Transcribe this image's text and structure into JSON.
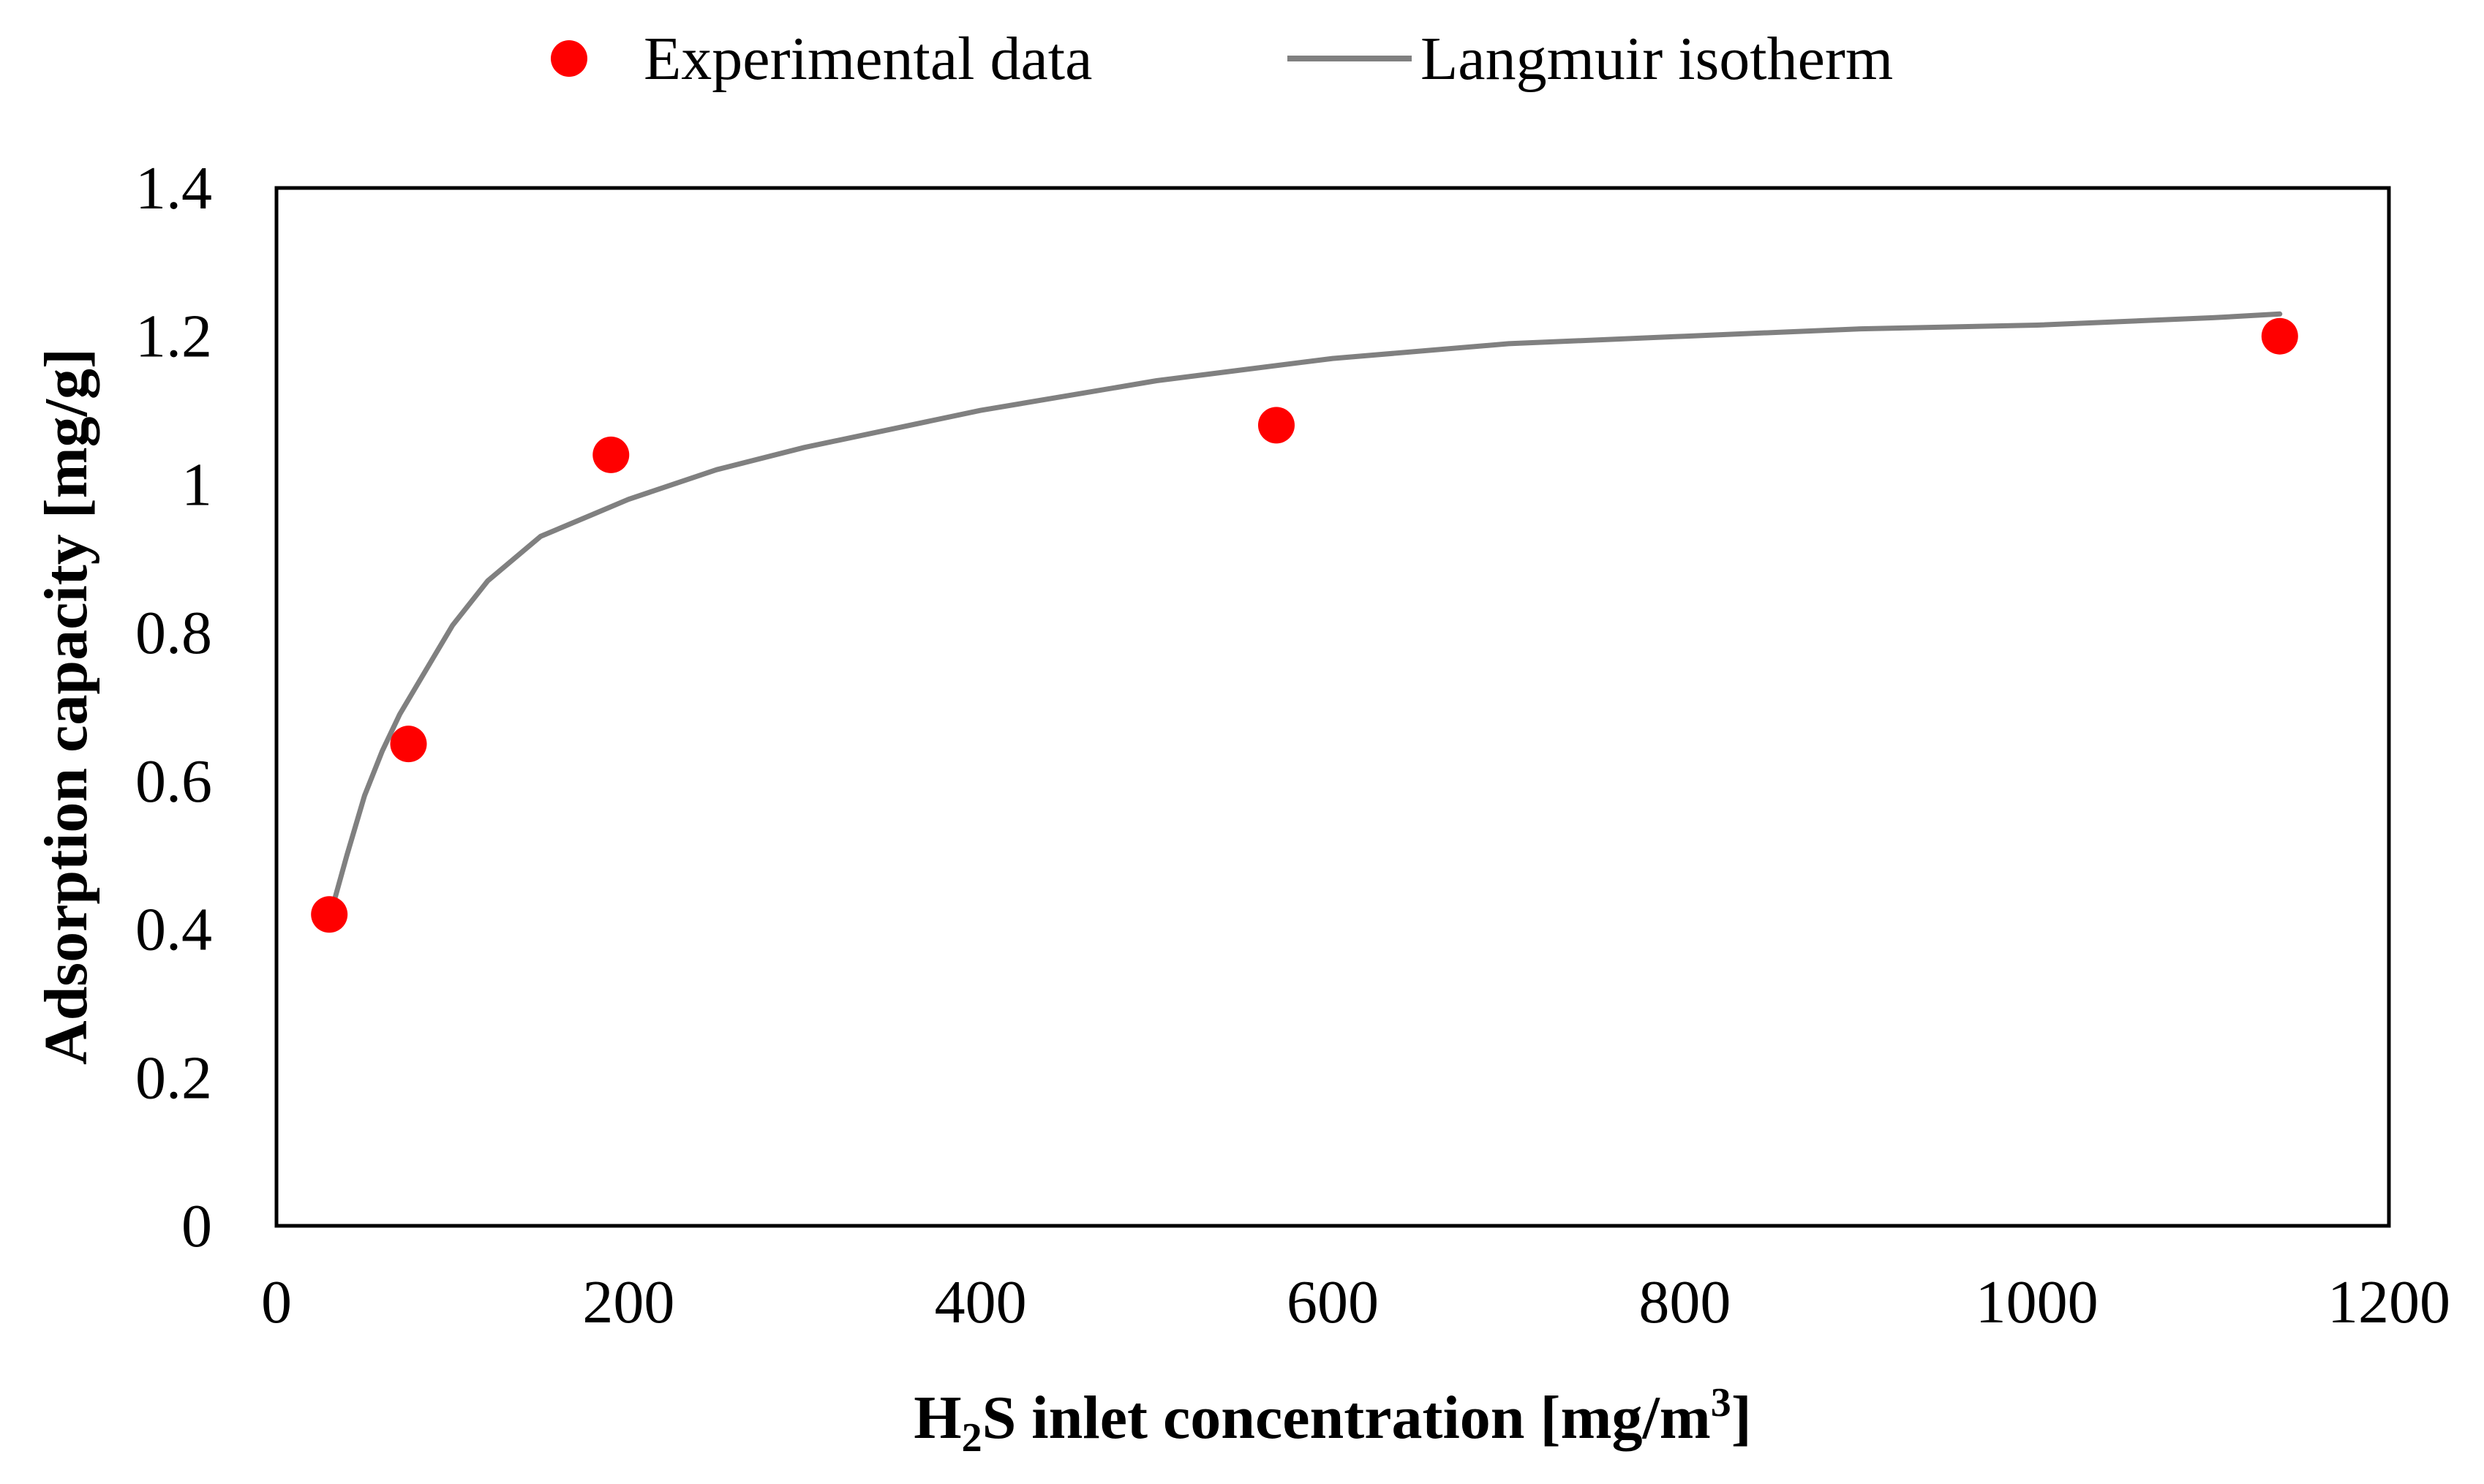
{
  "chart_data": {
    "type": "scatter",
    "title": "",
    "xlabel": {
      "prefix": "H",
      "subscript": "2",
      "middle": "S inlet concentration [mg/m",
      "superscript": "3",
      "suffix": "]"
    },
    "ylabel": "Adsorption capacity [mg/g]",
    "xlim": [
      0,
      1200
    ],
    "ylim": [
      0,
      1.4
    ],
    "x_ticks": [
      0,
      200,
      400,
      600,
      800,
      1000,
      1200
    ],
    "y_ticks": [
      0,
      0.2,
      0.4,
      0.6,
      0.8,
      1,
      1.2,
      1.4
    ],
    "x_tick_labels": [
      "0",
      "200",
      "400",
      "600",
      "800",
      "1000",
      "1200"
    ],
    "y_tick_labels": [
      "0",
      "0.2",
      "0.4",
      "0.6",
      "0.8",
      "1",
      "1.2",
      "1.4"
    ],
    "grid": false,
    "legend_position": "top-center",
    "series": [
      {
        "name": "Experimental data",
        "kind": "scatter",
        "color": "#ff0000",
        "x": [
          30,
          75,
          190,
          568,
          1138
        ],
        "y": [
          0.42,
          0.65,
          1.04,
          1.08,
          1.2
        ]
      },
      {
        "name": "Langmuir isotherm",
        "kind": "line",
        "color": "#808080",
        "x": [
          33,
          40,
          50,
          60,
          70,
          80,
          90,
          100,
          120,
          150,
          180,
          200,
          250,
          300,
          400,
          500,
          600,
          700,
          800,
          900,
          1000,
          1100,
          1138
        ],
        "y": [
          0.44,
          0.5,
          0.58,
          0.64,
          0.69,
          0.73,
          0.77,
          0.81,
          0.87,
          0.93,
          0.96,
          0.98,
          1.02,
          1.05,
          1.1,
          1.14,
          1.17,
          1.19,
          1.2,
          1.21,
          1.215,
          1.225,
          1.23
        ]
      }
    ]
  }
}
